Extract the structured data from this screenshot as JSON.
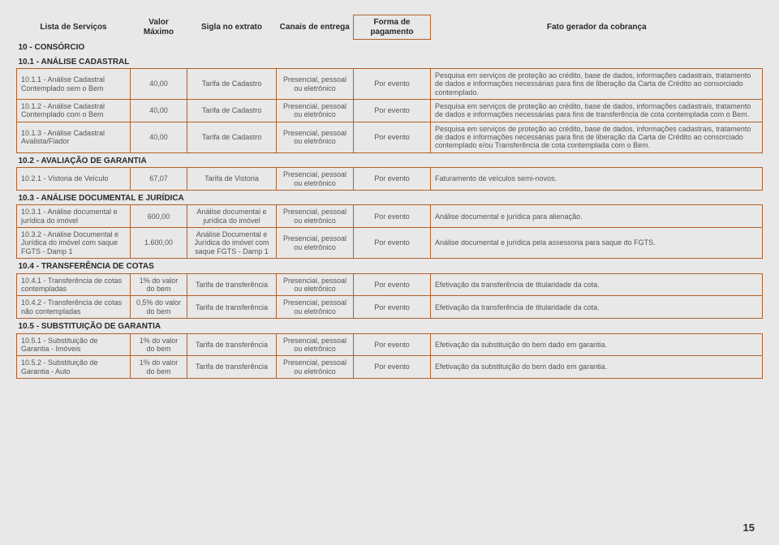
{
  "headers": {
    "servico": "Lista de Serviços",
    "valor": "Valor Máximo",
    "sigla": "Sigla no extrato",
    "canais": "Canais de entrega",
    "forma": "Forma de pagamento",
    "fato": "Fato gerador da cobrança"
  },
  "sections": {
    "s10": "10 - CONSÓRCIO",
    "s101": "10.1 - ANÁLISE CADASTRAL",
    "s102": "10.2 - AVALIAÇÃO DE GARANTIA",
    "s103": "10.3 - ANÁLISE DOCUMENTAL E JURÍDICA",
    "s104": "10.4 - TRANSFERÊNCIA DE COTAS",
    "s105": "10.5 - SUBSTITUIÇÃO DE GARANTIA"
  },
  "rows": {
    "r1011": {
      "serv": "10.1.1 - Análise Cadastral Contemplado sem o Bem",
      "val": "40,00",
      "sigla": "Tarifa de Cadastro",
      "canal": "Presencial, pessoal ou eletrônico",
      "forma": "Por evento",
      "fato": "Pesquisa em serviços de proteção ao crédito, base de dados, informações cadastrais, tratamento de dados e informações necessárias para fins de liberação da Carta de Crédito ao consorciado contemplado."
    },
    "r1012": {
      "serv": "10.1.2 - Análise Cadastral Contemplado com o Bem",
      "val": "40,00",
      "sigla": "Tarifa de Cadastro",
      "canal": "Presencial, pessoal ou eletrônico",
      "forma": "Por evento",
      "fato": "Pesquisa em serviços de proteção ao crédito, base de dados, informações cadastrais, tratamento de dados e informações necessárias para fins de transferência de cota contemplada com o Bem."
    },
    "r1013": {
      "serv": "10.1.3 - Análise Cadastral Avalista/Fiador",
      "val": "40,00",
      "sigla": "Tarifa de Cadastro",
      "canal": "Presencial, pessoal ou eletrônico",
      "forma": "Por evento",
      "fato": "Pesquisa em serviços de proteção ao crédito, base de dados, informações cadastrais, tratamento de dados e informações necessárias para fins de liberação da Carta de Crédito ao consorciado contemplado e/ou Transferência de cota contemplada com o Bem."
    },
    "r1021": {
      "serv": "10.2.1 - Vistoria de Veículo",
      "val": "67,07",
      "sigla": "Tarifa de Vistoria",
      "canal": "Presencial, pessoal ou eletrônico",
      "forma": "Por evento",
      "fato": "Faturamento de veículos semi-novos."
    },
    "r1031": {
      "serv": "10.3.1 - Análise documental e jurídica do imóvel",
      "val": "600,00",
      "sigla": "Análise documental e jurídica do imóvel",
      "canal": "Presencial, pessoal ou eletrônico",
      "forma": "Por evento",
      "fato": "Análise documental e jurídica para alienação."
    },
    "r1032": {
      "serv": "10.3.2 - Análise Documental e Jurídica do imóvel com saque FGTS - Damp 1",
      "val": "1.600,00",
      "sigla": "Análise Documental e Jurídica do imóvel com saque FGTS - Damp 1",
      "canal": "Presencial, pessoal ou eletrônico",
      "forma": "Por evento",
      "fato": "Análise documental e jurídica pela assessoria para saque do FGTS."
    },
    "r1041": {
      "serv": "10.4.1 - Transferência de cotas contempladas",
      "val": "1% do valor do bem",
      "sigla": "Tarifa de transferência",
      "canal": "Presencial, pessoal ou eletrônico",
      "forma": "Por evento",
      "fato": "Efetivação da transferência de titularidade da cota."
    },
    "r1042": {
      "serv": "10.4.2 - Transferência de cotas não contempladas",
      "val": "0,5% do valor do bem",
      "sigla": "Tarifa de transferência",
      "canal": "Presencial, pessoal ou eletrônico",
      "forma": "Por evento",
      "fato": "Efetivação da transferência de titularidade da cota."
    },
    "r1051": {
      "serv": "10.5.1 - Substituição de Garantia - Imóveis",
      "val": "1% do valor do bem",
      "sigla": "Tarifa de transferência",
      "canal": "Presencial, pessoal ou eletrônico",
      "forma": "Por evento",
      "fato": "Efetivação da substituição do bem dado em garantia."
    },
    "r1052": {
      "serv": "10.5.2 - Substituição de Garantia - Auto",
      "val": "1% do valor do bem",
      "sigla": "Tarifa de transferência",
      "canal": "Presencial, pessoal ou eletrônico",
      "forma": "Por evento",
      "fato": "Efetivação da substituição do bem dado em garantia."
    }
  },
  "page_number": "15",
  "colors": {
    "border": "#b06028",
    "background": "#e8e8e8",
    "text": "#555555",
    "heading": "#2a2a2a"
  }
}
